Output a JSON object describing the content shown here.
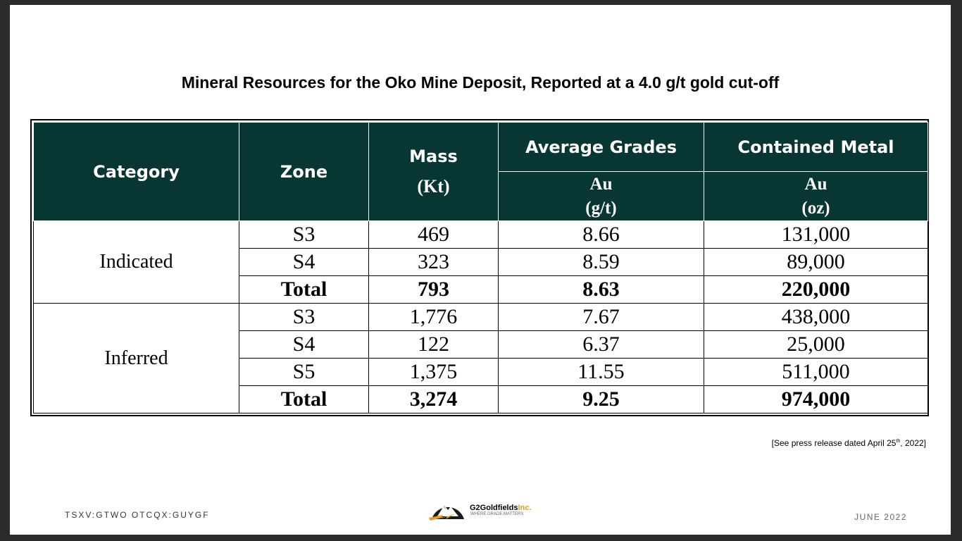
{
  "title": "Mineral Resources for the Oko Mine Deposit, Reported at a 4.0 g/t gold cut-off",
  "table": {
    "headers": {
      "category": "Category",
      "zone": "Zone",
      "mass": "Mass",
      "mass_unit": "(Kt)",
      "avg_grades": "Average Grades",
      "avg_grades_sub": "Au",
      "avg_grades_unit": "(g/t)",
      "contained_metal": "Contained Metal",
      "contained_metal_sub": "Au",
      "contained_metal_unit": "(oz)"
    },
    "groups": [
      {
        "category": "Indicated",
        "rows": [
          {
            "zone": "S3",
            "mass": "469",
            "grade": "8.66",
            "metal": "131,000"
          },
          {
            "zone": "S4",
            "mass": "323",
            "grade": "8.59",
            "metal": "89,000"
          },
          {
            "zone": "Total",
            "mass": "793",
            "grade": "8.63",
            "metal": "220,000"
          }
        ]
      },
      {
        "category": "Inferred",
        "rows": [
          {
            "zone": "S3",
            "mass": "1,776",
            "grade": "7.67",
            "metal": "438,000"
          },
          {
            "zone": "S4",
            "mass": "122",
            "grade": "6.37",
            "metal": "25,000"
          },
          {
            "zone": "S5",
            "mass": "1,375",
            "grade": "11.55",
            "metal": "511,000"
          },
          {
            "zone": "Total",
            "mass": "3,274",
            "grade": "9.25",
            "metal": "974,000"
          }
        ]
      }
    ]
  },
  "note": {
    "prefix": "[See press release dated April 25",
    "sup": "th",
    "suffix": ", 2022]"
  },
  "footer": {
    "ticker": "TSXV:GTWO OTCQX:GUYGF",
    "logo_brand": "G2Goldfields",
    "logo_inc": "Inc.",
    "logo_tagline": "WHERE GRADE MATTERS",
    "date": "JUNE 2022"
  },
  "colors": {
    "header_bg": "#083633",
    "accent": "#e39a2b"
  }
}
